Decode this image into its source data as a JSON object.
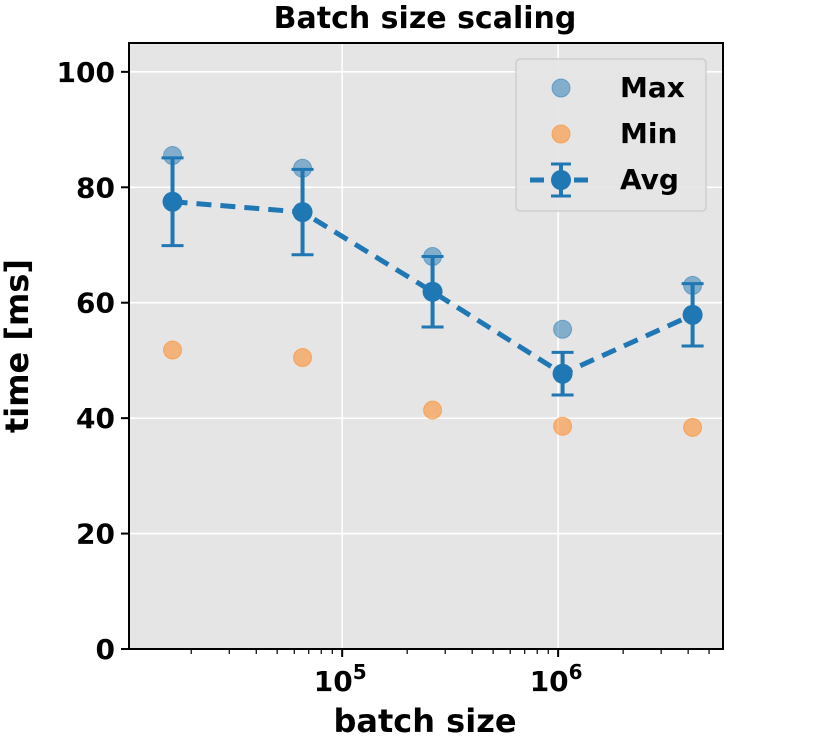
{
  "chart_data": {
    "type": "scatter",
    "title": "Batch size scaling",
    "xlabel": "batch size",
    "ylabel": "time [ms]",
    "xscale": "log",
    "xlim": [
      10300,
      5800000
    ],
    "ylim": [
      0,
      105
    ],
    "grid": true,
    "legend_position": "top-right",
    "x": [
      16384,
      65536,
      262144,
      1048576,
      4194304
    ],
    "x_ticks": [
      {
        "value": 100000,
        "base": "10",
        "exp": "5"
      },
      {
        "value": 1000000,
        "base": "10",
        "exp": "6"
      }
    ],
    "y_ticks": [
      0,
      20,
      40,
      60,
      80,
      100
    ],
    "series": [
      {
        "name": "Max",
        "kind": "scatter",
        "color": "#1f77b4",
        "values": [
          85.5,
          83.3,
          68.0,
          55.4,
          63.0
        ]
      },
      {
        "name": "Min",
        "kind": "scatter",
        "color": "#ff7f0e",
        "values": [
          51.8,
          50.5,
          41.4,
          38.6,
          38.4
        ]
      },
      {
        "name": "Avg",
        "kind": "errorbar-line",
        "color": "#1f77b4",
        "values": [
          77.5,
          75.7,
          61.9,
          47.7,
          57.9
        ],
        "error": [
          7.6,
          7.4,
          6.1,
          3.7,
          5.4
        ]
      }
    ],
    "colors": {
      "background": "#e5e5e5",
      "grid": "#ffffff"
    }
  }
}
